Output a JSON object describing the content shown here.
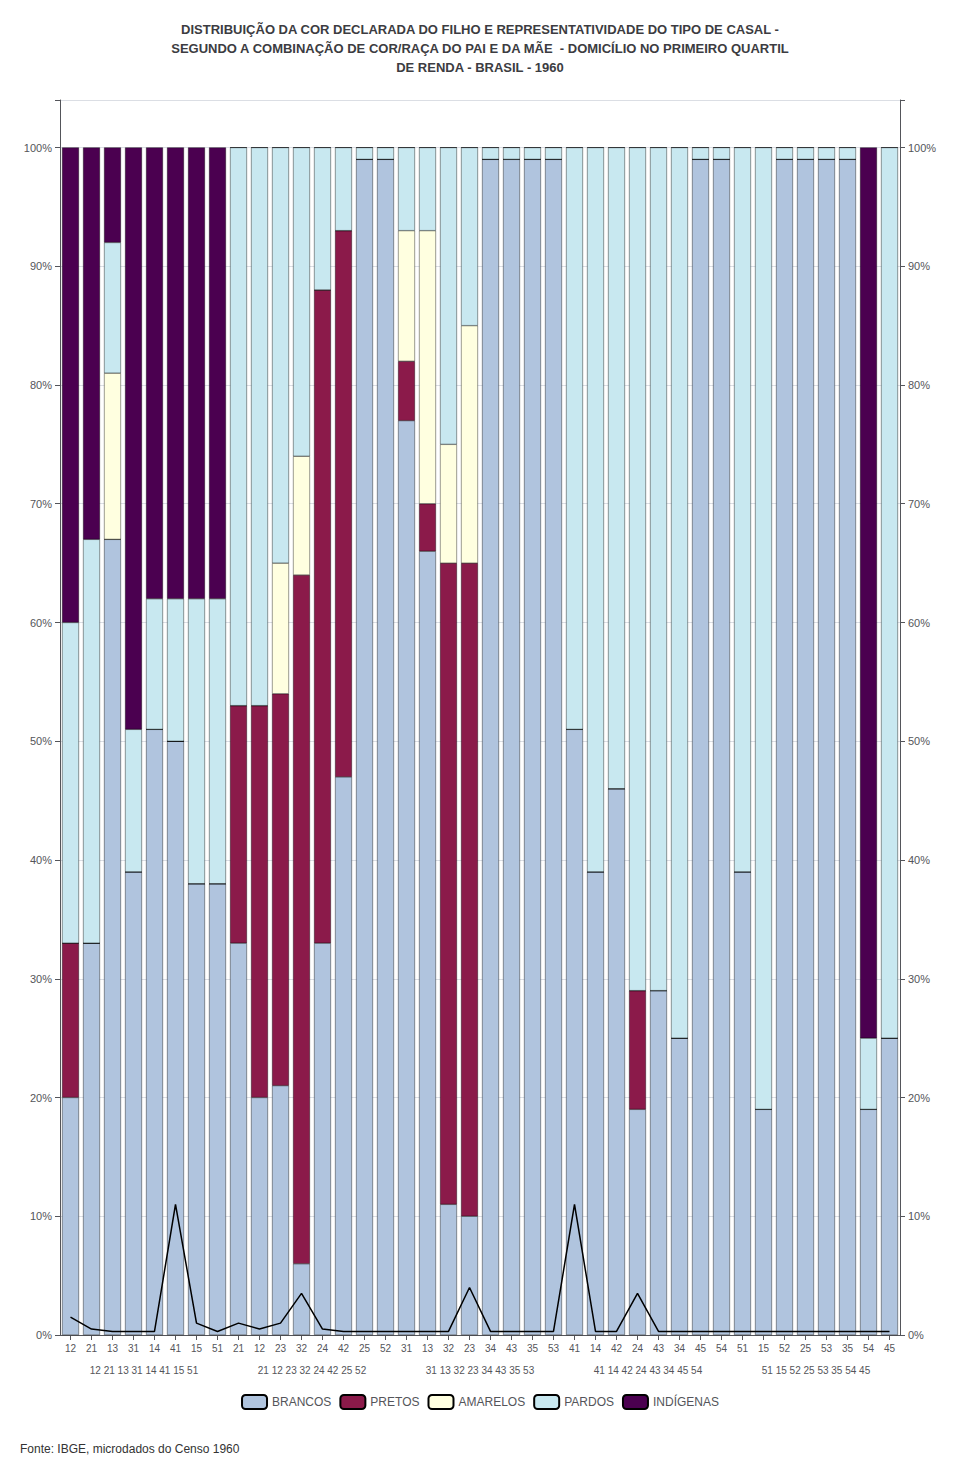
{
  "chart_data": {
    "type": "bar",
    "title": "DISTRIBUIÇÃO DA COR DECLARADA DO FILHO E REPRESENTATIVIDADE DO TIPO DE CASAL -\nSEGUNDO A COMBINAÇÃO DE COR/RAÇA DO PAI E DA MÃE  - DOMICÍLIO NO PRIMEIRO QUARTIL\nDE RENDA - BRASIL - 1960",
    "annotations": [
      "Fonte: IBGE, microdados do Censo 1960"
    ],
    "group_labels": [
      "12 21 13 31 14 41 15 51",
      "21 12 23 32 24 42 25 52",
      "31 13 32 23 34 43 35 53",
      "41 14 42 24 43 34 45 54",
      "51 15 52 25 53 35 54 45"
    ],
    "categories": [
      "12",
      "21",
      "13",
      "31",
      "14",
      "41",
      "15",
      "51",
      "21",
      "12",
      "23",
      "32",
      "24",
      "42",
      "25",
      "52",
      "31",
      "13",
      "32",
      "23",
      "34",
      "43",
      "35",
      "53",
      "41",
      "14",
      "42",
      "24",
      "43",
      "34",
      "45",
      "54",
      "51",
      "15",
      "52",
      "25",
      "53",
      "35",
      "54",
      "45"
    ],
    "stacked": true,
    "grid": true,
    "legend": "bottom",
    "series": [
      {
        "name": "BRANCOS",
        "color": "#B0C4DE",
        "values": [
          20,
          33,
          67,
          39,
          51,
          50,
          38,
          38,
          33,
          20,
          21,
          6,
          33,
          47,
          99,
          99,
          77,
          66,
          11,
          10,
          99,
          99,
          99,
          99,
          51,
          39,
          46,
          19,
          29,
          25,
          99,
          99,
          39,
          19,
          99,
          99,
          99,
          99,
          19,
          25
        ]
      },
      {
        "name": "PRETOS",
        "color": "#8B1A4A",
        "values": [
          13,
          0,
          0,
          0,
          0,
          0,
          0,
          0,
          20,
          33,
          33,
          58,
          55,
          46,
          0,
          0,
          5,
          4,
          54,
          55,
          0,
          0,
          0,
          0,
          0,
          0,
          0,
          10,
          0,
          0,
          0,
          0,
          0,
          0,
          0,
          0,
          0,
          0,
          0,
          0
        ]
      },
      {
        "name": "AMARELOS",
        "color": "#FFFFE0",
        "values": [
          0,
          0,
          14,
          0,
          0,
          0,
          0,
          0,
          0,
          0,
          11,
          10,
          0,
          0,
          0,
          0,
          11,
          23,
          10,
          20,
          0,
          0,
          0,
          0,
          0,
          0,
          0,
          0,
          0,
          0,
          0,
          0,
          0,
          0,
          0,
          0,
          0,
          0,
          0,
          0
        ]
      },
      {
        "name": "PARDOS",
        "color": "#C8E8F0",
        "values": [
          27,
          34,
          11,
          12,
          11,
          12,
          24,
          24,
          47,
          47,
          35,
          26,
          12,
          7,
          1,
          1,
          7,
          7,
          25,
          15,
          1,
          1,
          1,
          1,
          49,
          61,
          54,
          71,
          71,
          75,
          1,
          1,
          61,
          81,
          1,
          1,
          1,
          1,
          6,
          75
        ]
      },
      {
        "name": "INDÍGENAS",
        "color": "#4B0050",
        "values": [
          40,
          33,
          8,
          49,
          38,
          38,
          38,
          38,
          0,
          0,
          0,
          0,
          0,
          0,
          0,
          0,
          0,
          0,
          0,
          0,
          0,
          0,
          0,
          0,
          0,
          0,
          0,
          0,
          0,
          0,
          0,
          0,
          0,
          0,
          0,
          0,
          0,
          0,
          75,
          0
        ]
      },
      {
        "type": "line",
        "color": "#000000",
        "values": [
          1.5,
          0.5,
          0.3,
          0.3,
          0.3,
          11.0,
          1.0,
          0.3,
          1.0,
          0.5,
          1.0,
          3.5,
          0.5,
          0.3,
          0.3,
          0.3,
          0.3,
          0.3,
          0.3,
          4.0,
          0.3,
          0.3,
          0.3,
          0.3,
          11.0,
          0.3,
          0.3,
          3.5,
          0.3,
          0.3,
          0.3,
          0.3,
          0.3,
          0.3,
          0.3,
          0.3,
          0.3,
          0.3,
          0.3,
          0.3
        ]
      }
    ],
    "ylim": [
      0,
      104
    ],
    "yticks": [
      {
        "value": 0,
        "label": "0%"
      },
      {
        "value": 10,
        "label": "10%"
      },
      {
        "value": 20,
        "label": "20%"
      },
      {
        "value": 30,
        "label": "30%"
      },
      {
        "value": 40,
        "label": "40%"
      },
      {
        "value": 50,
        "label": "50%"
      },
      {
        "value": 60,
        "label": "60%"
      },
      {
        "value": 70,
        "label": "70%"
      },
      {
        "value": 80,
        "label": "80%"
      },
      {
        "value": 90,
        "label": "90%"
      },
      {
        "value": 100,
        "label": "100%"
      }
    ],
    "y2lim": [
      0,
      104
    ],
    "y2ticks": [
      {
        "value": 0,
        "label": "0%"
      },
      {
        "value": 10,
        "label": "10%"
      },
      {
        "value": 20,
        "label": "20%"
      },
      {
        "value": 30,
        "label": "30%"
      },
      {
        "value": 40,
        "label": "40%"
      },
      {
        "value": 50,
        "label": "50%"
      },
      {
        "value": 60,
        "label": "60%"
      },
      {
        "value": 70,
        "label": "70%"
      },
      {
        "value": 80,
        "label": "80%"
      },
      {
        "value": 90,
        "label": "90%"
      },
      {
        "value": 100,
        "label": "100%"
      }
    ]
  }
}
